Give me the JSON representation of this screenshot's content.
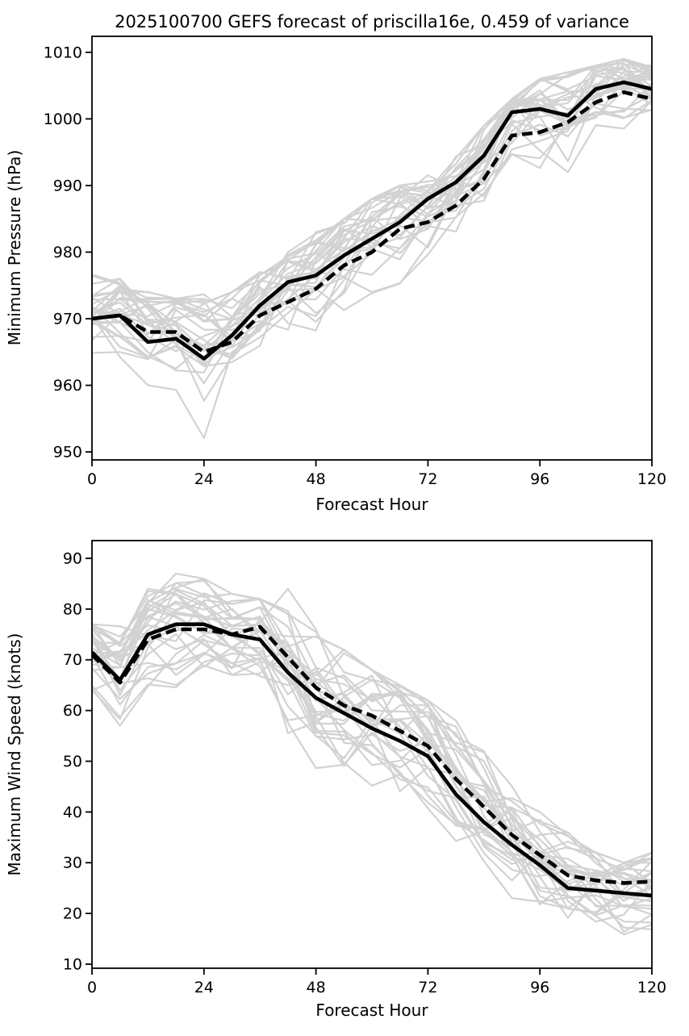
{
  "title": "2025100700 GEFS forecast of priscilla16e, 0.459 of variance",
  "colors": {
    "line": "#000000",
    "ensemble_member": "#d2d2d2",
    "background": "#ffffff",
    "text": "#000000"
  },
  "chart_data": [
    {
      "type": "line",
      "title": "",
      "xlabel": "Forecast Hour",
      "ylabel": "Minimum Pressure (hPa)",
      "grid": false,
      "legend": "none",
      "xlim": [
        0,
        120
      ],
      "ylim": [
        948.8,
        1012.4
      ],
      "xticks": [
        0,
        24,
        48,
        72,
        96,
        120
      ],
      "yticks": [
        950,
        960,
        970,
        980,
        990,
        1000,
        1010
      ],
      "x": [
        0,
        6,
        12,
        18,
        24,
        30,
        36,
        42,
        48,
        54,
        60,
        66,
        72,
        78,
        84,
        90,
        96,
        102,
        108,
        114,
        120
      ],
      "series": [
        {
          "name": "solid-black",
          "style": "solid",
          "color": "#000000",
          "values": [
            970,
            970.5,
            966.5,
            967,
            964,
            967.5,
            972,
            975.5,
            976.5,
            979.5,
            982,
            984.5,
            988,
            990.5,
            994.5,
            1001,
            1001.5,
            1000.5,
            1004.5,
            1005.5,
            1004.5
          ]
        },
        {
          "name": "dashed-black",
          "style": "dashed",
          "color": "#000000",
          "values": [
            970,
            970.5,
            968,
            968,
            965,
            966.5,
            970.5,
            972.5,
            974.5,
            978,
            980,
            983.5,
            984.5,
            987,
            991,
            997.5,
            998,
            999.5,
            1002.5,
            1004,
            1003
          ]
        }
      ],
      "ensemble_members": {
        "count": 30,
        "color": "#d2d2d2",
        "seed": 42,
        "envelope_min": [
          963,
          962,
          959,
          957,
          952,
          957,
          961,
          963,
          966,
          968,
          971,
          974,
          977,
          979,
          982,
          986,
          989,
          992,
          995,
          996,
          997
        ],
        "envelope_max": [
          977,
          976,
          974,
          973,
          975,
          974,
          977,
          980,
          983,
          985,
          988,
          990,
          992,
          995,
          999,
          1003,
          1006,
          1007,
          1008,
          1009,
          1008
        ]
      }
    },
    {
      "type": "line",
      "title": "",
      "xlabel": "Forecast Hour",
      "ylabel": "Maximum Wind Speed (knots)",
      "grid": false,
      "legend": "none",
      "xlim": [
        0,
        120
      ],
      "ylim": [
        9.2,
        93.5
      ],
      "xticks": [
        0,
        24,
        48,
        72,
        96,
        120
      ],
      "yticks": [
        10,
        20,
        30,
        40,
        50,
        60,
        70,
        80,
        90
      ],
      "x": [
        0,
        6,
        12,
        18,
        24,
        30,
        36,
        42,
        48,
        54,
        60,
        66,
        72,
        78,
        84,
        90,
        96,
        102,
        108,
        114,
        120
      ],
      "series": [
        {
          "name": "solid-black",
          "style": "solid",
          "color": "#000000",
          "values": [
            71.5,
            66,
            75,
            77,
            77,
            75,
            74,
            67.5,
            62.5,
            59.5,
            56.5,
            54,
            51,
            43.5,
            38,
            33.5,
            29.5,
            25,
            24.5,
            24,
            23.5
          ]
        },
        {
          "name": "dashed-black",
          "style": "dashed",
          "color": "#000000",
          "values": [
            71,
            65.5,
            74,
            76,
            76,
            75,
            76.5,
            70.5,
            64.5,
            61,
            59,
            56,
            53,
            46.5,
            41,
            35.5,
            31.5,
            27.5,
            26.5,
            26,
            26.3
          ]
        }
      ],
      "ensemble_members": {
        "count": 30,
        "color": "#d2d2d2",
        "seed": 1042,
        "envelope_min": [
          58,
          57,
          62,
          64,
          64,
          62,
          60,
          52,
          46,
          44,
          41,
          40,
          40,
          34,
          28,
          23,
          17,
          14,
          13,
          12,
          14
        ],
        "envelope_max": [
          77,
          80,
          84,
          87,
          86,
          83,
          82,
          84,
          76,
          72,
          68,
          65,
          62,
          58,
          52,
          48,
          40,
          36,
          32,
          30,
          32
        ]
      }
    }
  ]
}
